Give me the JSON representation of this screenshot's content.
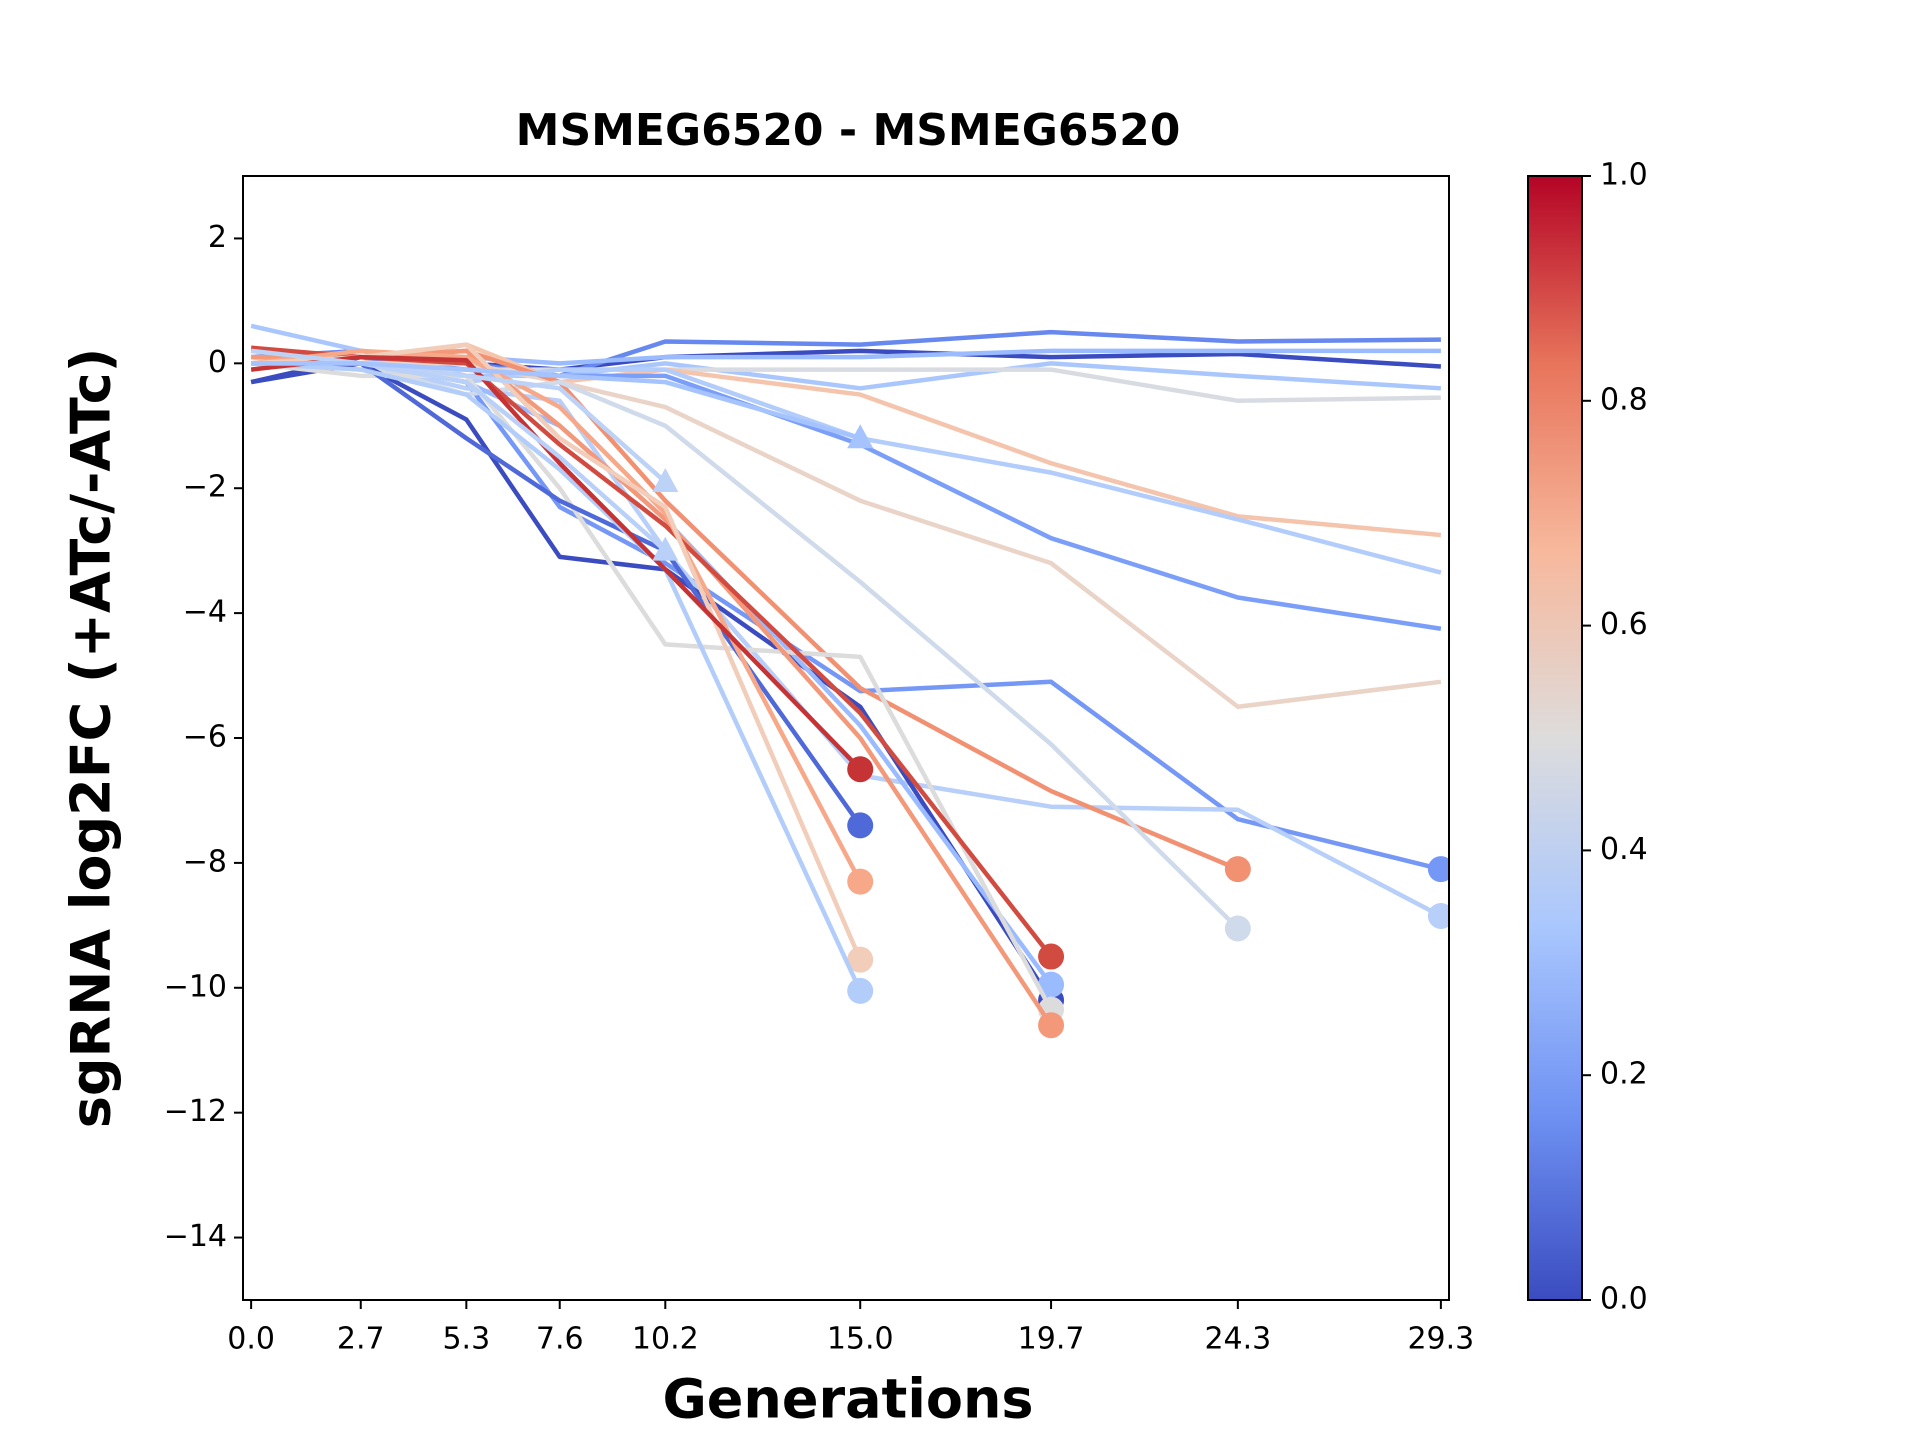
{
  "chart_data": {
    "type": "line",
    "title": "MSMEG6520 - MSMEG6520",
    "x_label": "Generations",
    "y_label": "sgRNA log2FC (+ATc/-ATc)",
    "x": [
      0,
      2.7,
      5.3,
      7.6,
      10.2,
      15.0,
      19.7,
      24.3,
      29.3
    ],
    "xlim": [
      -0.2,
      29.5
    ],
    "ylim": [
      -15,
      3
    ],
    "xticks": [
      {
        "value": 0,
        "label": "0.0"
      },
      {
        "value": 2.7,
        "label": "2.7"
      },
      {
        "value": 5.3,
        "label": "5.3"
      },
      {
        "value": 7.6,
        "label": "7.6"
      },
      {
        "value": 10.2,
        "label": "10.2"
      },
      {
        "value": 15.0,
        "label": "15.0"
      },
      {
        "value": 19.7,
        "label": "19.7"
      },
      {
        "value": 24.3,
        "label": "24.3"
      },
      {
        "value": 29.3,
        "label": "29.3"
      }
    ],
    "yticks": [
      2,
      0,
      {
        "value": -2,
        "label": "−2"
      },
      {
        "value": -4,
        "label": "−4"
      },
      {
        "value": -6,
        "label": "−6"
      },
      {
        "value": -8,
        "label": "−8"
      },
      {
        "value": -10,
        "label": "−10"
      },
      {
        "value": -12,
        "label": "−12"
      },
      {
        "value": -14,
        "label": "−14"
      }
    ],
    "series": [
      {
        "color": "#3b4cc0",
        "values": [
          -0.3,
          0.1,
          0.0,
          -0.1,
          0.1,
          0.2,
          0.1,
          0.15,
          -0.05
        ]
      },
      {
        "color": "#6788ee",
        "values": [
          0.1,
          0.2,
          0.0,
          -0.2,
          0.35,
          0.3,
          0.5,
          0.35,
          0.38
        ]
      },
      {
        "color": "#9abbff",
        "values": [
          0.0,
          0.1,
          0.1,
          0.0,
          0.1,
          0.1,
          0.2,
          0.2,
          0.2
        ]
      },
      {
        "color": "#aac7fd",
        "values": [
          0.6,
          0.2,
          -0.2,
          -0.2,
          0.0,
          -0.4,
          0.0,
          -0.2,
          -0.4
        ]
      },
      {
        "color": "#d8dce2",
        "values": [
          0.1,
          -0.1,
          -0.1,
          -0.1,
          -0.1,
          -0.1,
          -0.1,
          -0.6,
          -0.55
        ]
      },
      {
        "color": "#f5c4ac",
        "values": [
          0.2,
          0.0,
          0.3,
          -0.3,
          -0.1,
          -0.5,
          -1.6,
          -2.45,
          -2.75
        ]
      },
      {
        "color": "#b2ccfb",
        "values": [
          0.0,
          0.0,
          -0.3,
          -0.1,
          -0.1,
          -1.2,
          -1.75,
          -2.5,
          -3.35
        ]
      },
      {
        "color": "#7b9ff9",
        "values": [
          0.0,
          0.1,
          -0.1,
          -0.2,
          -0.2,
          -1.3,
          -2.8,
          -3.75,
          -4.25
        ]
      },
      {
        "color": "#ead4c8",
        "values": [
          0.2,
          0.0,
          0.0,
          -0.3,
          -0.7,
          -2.2,
          -3.2,
          -5.5,
          -5.1
        ]
      },
      {
        "color": "#7597f6",
        "marker": "o",
        "values": [
          0.0,
          0.0,
          -0.3,
          -2.3,
          -3.2,
          -5.25,
          -5.1,
          -7.3,
          -8.1
        ]
      },
      {
        "color": "#b7cff9",
        "marker": "o",
        "values": [
          0.0,
          0.0,
          -0.4,
          -0.6,
          -3.0,
          -6.6,
          -7.1,
          -7.15,
          -8.85
        ]
      },
      {
        "color": "#f29072",
        "marker": "o",
        "values": [
          0.0,
          0.1,
          0.2,
          -0.3,
          -2.2,
          -5.2,
          -6.85,
          -8.1,
          null
        ]
      },
      {
        "color": "#cfdaea",
        "marker": "o",
        "values": [
          0.1,
          0.0,
          -0.5,
          -0.3,
          -1.0,
          -3.5,
          -6.1,
          -9.05,
          null
        ]
      },
      {
        "color": "#3b4cc0",
        "marker": "o",
        "values": [
          -0.3,
          0.0,
          -0.9,
          -3.1,
          -3.3,
          -5.5,
          -10.2,
          null,
          null
        ]
      },
      {
        "color": "#9abbff",
        "marker": "o",
        "values": [
          0.0,
          0.0,
          -0.3,
          -1.0,
          -2.5,
          -5.8,
          -9.95,
          null,
          null
        ]
      },
      {
        "color": "#dddcdc",
        "marker": "o",
        "values": [
          0.0,
          -0.2,
          -0.2,
          -2.0,
          -4.5,
          -4.7,
          -10.35,
          null,
          null
        ]
      },
      {
        "color": "#f4987a",
        "marker": "o",
        "values": [
          0.1,
          0.1,
          0.2,
          -1.0,
          -2.5,
          -6.0,
          -10.6,
          null,
          null
        ]
      },
      {
        "color": "#d24b40",
        "marker": "o",
        "values": [
          0.25,
          0.1,
          0.0,
          -1.3,
          -2.6,
          -5.6,
          -9.5,
          null,
          null
        ]
      },
      {
        "color": "#4f69d9",
        "marker": "o",
        "values": [
          0.0,
          0.0,
          -1.2,
          -2.2,
          -3.0,
          -7.4,
          null,
          null,
          null
        ]
      },
      {
        "color": "#f7a889",
        "marker": "o",
        "values": [
          0.0,
          0.2,
          0.1,
          -0.7,
          -2.4,
          -8.3,
          null,
          null,
          null
        ]
      },
      {
        "color": "#f1cdba",
        "marker": "o",
        "values": [
          0.0,
          0.1,
          0.3,
          -1.2,
          -2.3,
          -9.55,
          null,
          null,
          null
        ]
      },
      {
        "color": "#b3cdfb",
        "marker": "o",
        "values": [
          0.0,
          -0.1,
          -0.5,
          -1.7,
          -3.3,
          -10.05,
          null,
          null,
          null
        ]
      },
      {
        "color": "#c53334",
        "marker": "o",
        "values": [
          -0.1,
          0.1,
          0.05,
          -1.6,
          -3.3,
          -6.5,
          null,
          null,
          null
        ]
      },
      {
        "color": "#bcd2f7",
        "marker": "^",
        "values": [
          0.2,
          0.0,
          -0.2,
          -0.4,
          -1.9,
          null,
          null,
          null,
          null
        ]
      },
      {
        "color": "#b9d0f9",
        "marker": "^",
        "values": [
          0.0,
          0.0,
          -0.3,
          -1.5,
          -3.0,
          null,
          null,
          null,
          null
        ]
      },
      {
        "color": "#a5c3fe",
        "marker": "^",
        "values": [
          0.0,
          0.0,
          -0.1,
          -0.2,
          -0.3,
          -1.2,
          null,
          null,
          null
        ]
      }
    ],
    "colorbar": {
      "range": [
        0,
        1
      ],
      "colors": [
        "#3b4cc0",
        "#6f92f3",
        "#aac7fd",
        "#dddcdc",
        "#f7b89c",
        "#e7745b",
        "#b40426"
      ],
      "ticks": [
        {
          "value": 0,
          "label": "0.0"
        },
        {
          "value": 0.2,
          "label": "0.2"
        },
        {
          "value": 0.4,
          "label": "0.4"
        },
        {
          "value": 0.6,
          "label": "0.6"
        },
        {
          "value": 0.8,
          "label": "0.8"
        },
        {
          "value": 1,
          "label": "1.0"
        }
      ]
    }
  }
}
